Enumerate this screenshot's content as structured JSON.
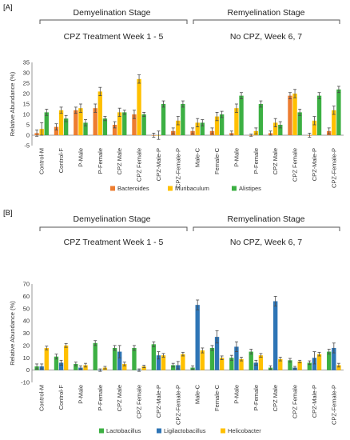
{
  "chart_data": [
    {
      "panel": "[A]",
      "type": "bar",
      "stage_left": {
        "title": "Demyelination Stage",
        "subtitle": "CPZ Treatment Week 1 - 5"
      },
      "stage_right": {
        "title": "Remyelination Stage",
        "subtitle": "No CPZ, Week 6, 7"
      },
      "ylabel": "Relative Abundance (%)",
      "ylim": [
        -5,
        35
      ],
      "yticks": [
        -5,
        0,
        5,
        10,
        15,
        20,
        25,
        30,
        35
      ],
      "categories": [
        "Control-M",
        "Control-F",
        "P-Male",
        "P-Female",
        "CPZ Male",
        "CPZ Female",
        "CPZ-Male-P",
        "CPZ-Female-P",
        "Male-C",
        "Female-C",
        "P-Male",
        "P-Female",
        "CPZ Male",
        "CPZ Female",
        "CPZ-Male-P",
        "CPZ-Female-P"
      ],
      "colors": [
        "#ed7d31",
        "#ffc000",
        "#3cb043"
      ],
      "series": [
        {
          "name": "Bacteroides",
          "values": [
            1,
            4,
            12,
            13,
            5,
            10,
            0,
            2,
            2,
            2,
            1,
            0,
            1,
            19,
            0,
            2
          ],
          "errors": [
            1.5,
            1.5,
            1.5,
            2,
            1.5,
            2,
            1,
            1.5,
            1.5,
            1.5,
            1,
            0.5,
            1,
            1.5,
            1,
            1.5
          ]
        },
        {
          "name": "Muribaculum",
          "values": [
            3,
            12,
            13,
            21,
            11,
            27,
            0,
            7,
            6,
            9,
            13,
            2,
            6,
            20,
            7,
            12
          ],
          "errors": [
            3,
            1.5,
            2,
            2,
            2,
            2,
            2,
            2,
            2,
            2,
            2,
            1.5,
            2,
            2,
            2,
            2
          ]
        },
        {
          "name": "Alistipes",
          "values": [
            11,
            8,
            6,
            8,
            11,
            10,
            15,
            15,
            6,
            10,
            19,
            15,
            5,
            11,
            19,
            22
          ],
          "errors": [
            1.5,
            1.5,
            1.5,
            1,
            1,
            1,
            1.5,
            1.5,
            1.5,
            1.5,
            1.5,
            1.5,
            1.5,
            1.5,
            1.5,
            1.5
          ]
        }
      ]
    },
    {
      "panel": "[B]",
      "type": "bar",
      "stage_left": {
        "title": "Demyelination Stage",
        "subtitle": "CPZ Treatment Week 1 - 5"
      },
      "stage_right": {
        "title": "Remyelination Stage",
        "subtitle": "No CPZ, Week 6, 7"
      },
      "ylabel": "Relative Abundance (%)",
      "ylim": [
        -10,
        70
      ],
      "yticks": [
        -10,
        0,
        10,
        20,
        30,
        40,
        50,
        60,
        70
      ],
      "categories": [
        "Control-M",
        "Control-F",
        "P-Male",
        "P-Female",
        "CPZ Male",
        "CPZ Female",
        "CPZ-Male-P",
        "CPZ-Female-P",
        "Male-C",
        "Female-C",
        "P-Male",
        "P-Female",
        "CPZ Male",
        "CPZ Female",
        "CPZ-Male-P",
        "CPZ-Female-P"
      ],
      "colors": [
        "#3cb043",
        "#2e75b6",
        "#ffc000"
      ],
      "series": [
        {
          "name": "Lactobacillus",
          "values": [
            3,
            11,
            5,
            22,
            18,
            18,
            21,
            4,
            2,
            18,
            10,
            15,
            2,
            8,
            6,
            15
          ],
          "errors": [
            2,
            2,
            1.5,
            2,
            2,
            2,
            2,
            1.5,
            1.5,
            2,
            2,
            2,
            1.5,
            1.5,
            1.5,
            2
          ]
        },
        {
          "name": "Ligilactobacillus",
          "values": [
            3,
            6,
            2,
            0,
            15,
            0,
            12,
            4,
            53,
            27,
            19,
            6,
            56,
            2,
            10,
            18
          ],
          "errors": [
            2,
            2,
            1.5,
            1,
            5,
            1,
            3,
            3,
            4,
            5,
            4,
            2,
            4,
            1,
            5,
            4
          ]
        },
        {
          "name": "Helicobacter",
          "values": [
            18,
            20,
            4,
            2,
            5,
            3,
            12,
            13,
            16,
            10,
            9,
            12,
            9,
            7,
            13,
            4
          ],
          "errors": [
            1.5,
            1.5,
            1.5,
            1,
            1.5,
            1,
            1.5,
            1.5,
            2,
            1.5,
            1.5,
            1.5,
            1.5,
            1,
            1.5,
            1.5
          ]
        }
      ]
    }
  ]
}
